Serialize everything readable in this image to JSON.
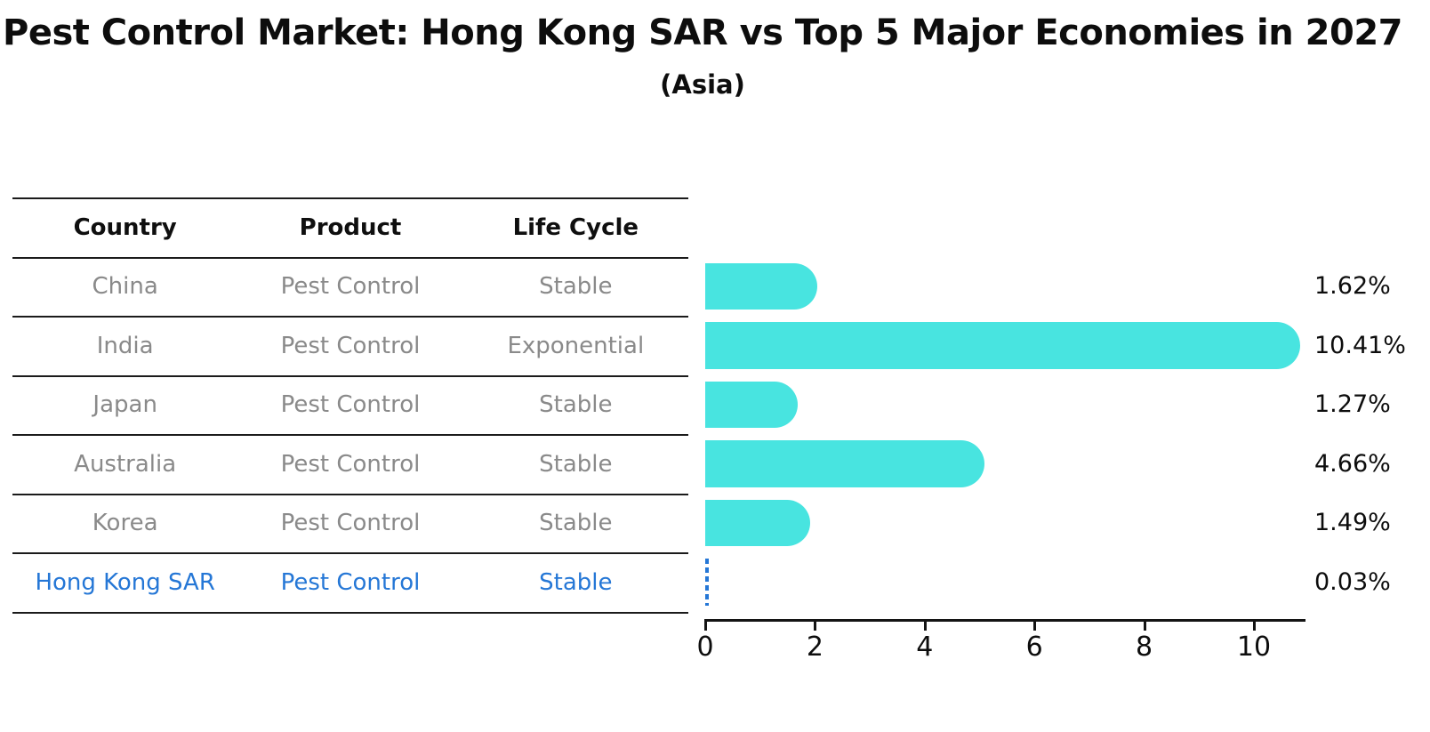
{
  "title": "Pest Control Market: Hong Kong SAR vs Top 5 Major Economies in 2027",
  "subtitle": "(Asia)",
  "table": {
    "headers": {
      "country": "Country",
      "product": "Product",
      "life_cycle": "Life Cycle"
    },
    "rows": [
      {
        "country": "China",
        "product": "Pest Control",
        "life_cycle": "Stable"
      },
      {
        "country": "India",
        "product": "Pest Control",
        "life_cycle": "Exponential"
      },
      {
        "country": "Japan",
        "product": "Pest Control",
        "life_cycle": "Stable"
      },
      {
        "country": "Australia",
        "product": "Pest Control",
        "life_cycle": "Stable"
      },
      {
        "country": "Korea",
        "product": "Pest Control",
        "life_cycle": "Stable"
      },
      {
        "country": "Hong Kong SAR",
        "product": "Pest Control",
        "life_cycle": "Stable"
      }
    ],
    "highlight_row_index": 5
  },
  "chart_data": {
    "type": "bar",
    "orientation": "horizontal",
    "title": "Pest Control Market: Hong Kong SAR vs Top 5 Major Economies in 2027",
    "subtitle": "(Asia)",
    "categories": [
      "China",
      "India",
      "Japan",
      "Australia",
      "Korea",
      "Hong Kong SAR"
    ],
    "values": [
      1.62,
      10.41,
      1.27,
      4.66,
      1.49,
      0.03
    ],
    "value_labels": [
      "1.62%",
      "10.41%",
      "1.27%",
      "4.66%",
      "1.49%",
      "0.03%"
    ],
    "x_tick_labels": [
      "0",
      "2",
      "4",
      "6",
      "8",
      "10"
    ],
    "x_tick_values": [
      0,
      2,
      4,
      6,
      8,
      10
    ],
    "xlim": [
      0,
      10.95
    ],
    "grid": false,
    "legend": false,
    "highlight_index": 5,
    "bar_color": "#48E4E0",
    "highlight_bar_color": "#2577D6"
  },
  "colors": {
    "background": "#FFFFFF",
    "bar": "#48E4E0",
    "highlight_blue": "#2577D6",
    "table_text_gray": "#8A8A8A",
    "header_text": "#0F0F0F",
    "axis_black": "#141414"
  }
}
